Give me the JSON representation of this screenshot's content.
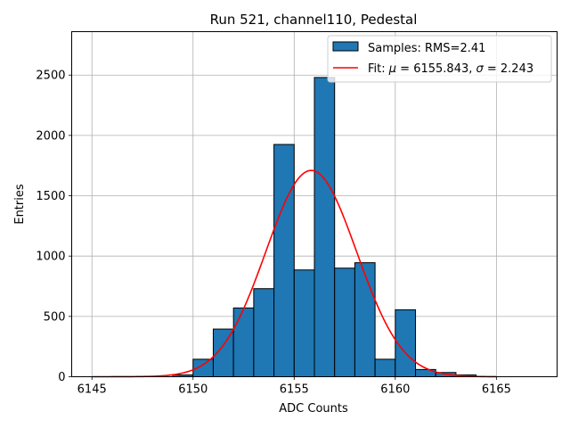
{
  "chart_data": {
    "type": "histogram",
    "title": "Run 521, channel110, Pedestal",
    "xlabel": "ADC Counts",
    "ylabel": "Entries",
    "xlim": [
      6144,
      6168
    ],
    "ylim": [
      0,
      2860
    ],
    "xticks": [
      6145,
      6150,
      6155,
      6160,
      6165
    ],
    "yticks": [
      0,
      500,
      1000,
      1500,
      2000,
      2500
    ],
    "grid": true,
    "bar_color": "#1f77b4",
    "fit_color": "#ff0000",
    "bins": [
      {
        "left": 6149,
        "right": 6150,
        "count": 15
      },
      {
        "left": 6150,
        "right": 6151,
        "count": 145
      },
      {
        "left": 6151,
        "right": 6152,
        "count": 395
      },
      {
        "left": 6152,
        "right": 6153,
        "count": 570
      },
      {
        "left": 6153,
        "right": 6154,
        "count": 730
      },
      {
        "left": 6154,
        "right": 6155,
        "count": 1925
      },
      {
        "left": 6155,
        "right": 6156,
        "count": 885
      },
      {
        "left": 6156,
        "right": 6157,
        "count": 2480
      },
      {
        "left": 6157,
        "right": 6158,
        "count": 900
      },
      {
        "left": 6158,
        "right": 6159,
        "count": 945
      },
      {
        "left": 6159,
        "right": 6160,
        "count": 145
      },
      {
        "left": 6160,
        "right": 6161,
        "count": 555
      },
      {
        "left": 6161,
        "right": 6162,
        "count": 60
      },
      {
        "left": 6162,
        "right": 6163,
        "count": 35
      },
      {
        "left": 6163,
        "right": 6164,
        "count": 15
      }
    ],
    "fit": {
      "mu": 6155.843,
      "sigma": 2.243,
      "amplitude": 1710,
      "x_range": [
        6145,
        6165
      ]
    },
    "legend": {
      "location": "upper right",
      "samples_prefix": "Samples: RMS=",
      "samples_rms": "2.41",
      "fit_prefix": "Fit: ",
      "mu_symbol": "μ",
      "mu_text": " = 6155.843, ",
      "sigma_symbol": "σ",
      "sigma_text": " = 2.243"
    }
  }
}
